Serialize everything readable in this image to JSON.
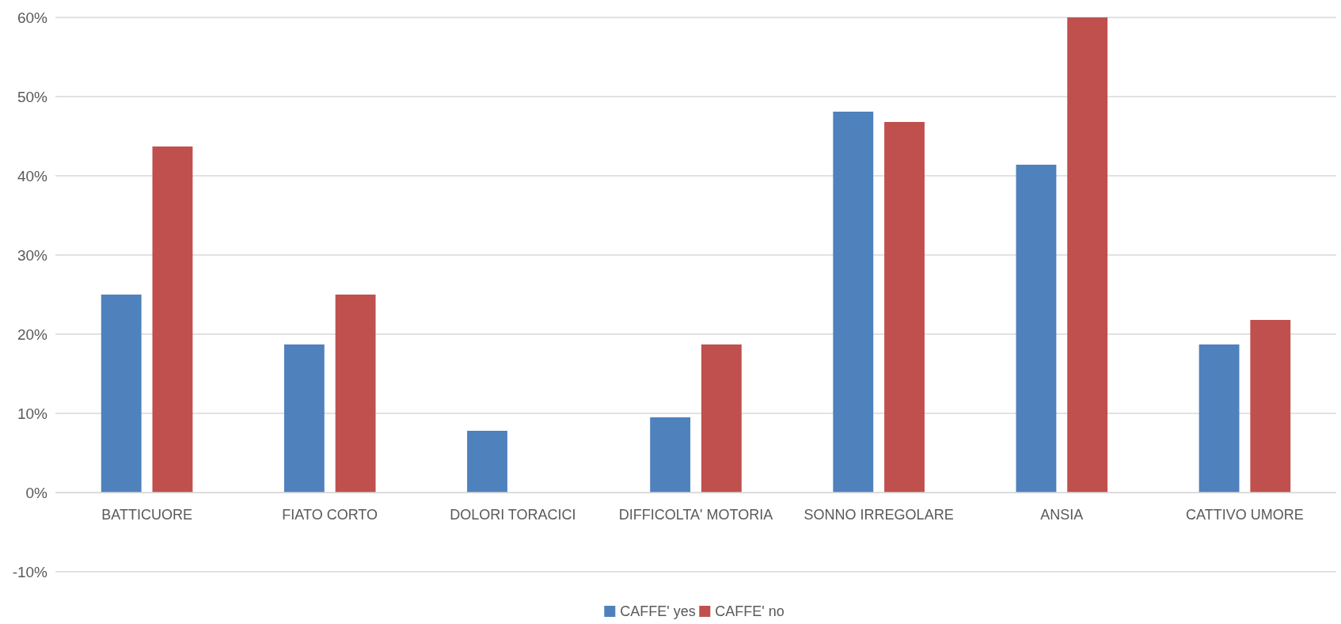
{
  "chart_data": {
    "type": "bar",
    "categories": [
      "BATTICUORE",
      "FIATO CORTO",
      "DOLORI TORACICI",
      "DIFFICOLTA' MOTORIA",
      "SONNO IRREGOLARE",
      "ANSIA",
      "CATTIVO UMORE"
    ],
    "series": [
      {
        "name": "CAFFE' yes",
        "color": "#4f81bd",
        "values": [
          25,
          18.7,
          7.8,
          9.5,
          48.1,
          41.4,
          18.7
        ]
      },
      {
        "name": "CAFFE' no",
        "color": "#c0504d",
        "values": [
          43.7,
          25,
          0,
          18.7,
          46.8,
          60,
          21.8
        ]
      }
    ],
    "ylim": [
      -10,
      60
    ],
    "yticks": [
      {
        "value": -10,
        "label": "-10%"
      },
      {
        "value": 0,
        "label": "0%"
      },
      {
        "value": 10,
        "label": "10%"
      },
      {
        "value": 20,
        "label": "20%"
      },
      {
        "value": 30,
        "label": "30%"
      },
      {
        "value": 40,
        "label": "40%"
      },
      {
        "value": 50,
        "label": "50%"
      },
      {
        "value": 60,
        "label": "60%"
      }
    ],
    "grid": "y",
    "legend": "bottom"
  }
}
